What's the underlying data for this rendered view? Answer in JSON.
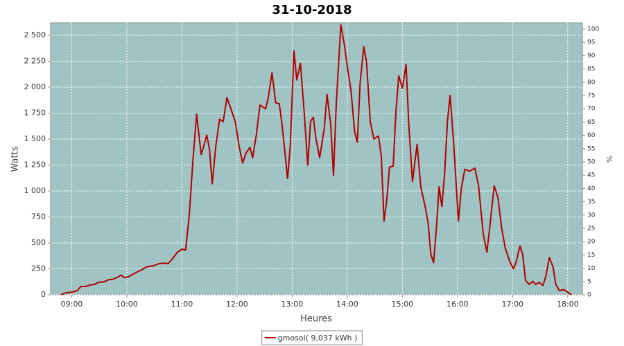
{
  "chart_data": {
    "type": "line",
    "title": "31-10-2018",
    "xlabel": "Heures",
    "ylabel": "Watts",
    "y2label": "%",
    "x": [
      "08:48",
      "08:54",
      "09:00",
      "09:06",
      "09:10",
      "09:15",
      "09:20",
      "09:25",
      "09:29",
      "09:35",
      "09:40",
      "09:45",
      "09:50",
      "09:54",
      "09:57",
      "10:02",
      "10:09",
      "10:16",
      "10:22",
      "10:29",
      "10:35",
      "10:40",
      "10:45",
      "10:50",
      "10:55",
      "11:00",
      "11:04",
      "11:08",
      "11:12",
      "11:16",
      "11:19",
      "11:21",
      "11:24",
      "11:27",
      "11:30",
      "11:33",
      "11:37",
      "11:41",
      "11:45",
      "11:49",
      "11:53",
      "11:58",
      "12:02",
      "12:06",
      "12:10",
      "12:14",
      "12:17",
      "12:21",
      "12:25",
      "12:31",
      "12:34",
      "12:38",
      "12:42",
      "12:46",
      "12:49",
      "12:55",
      "12:58",
      "13:02",
      "13:05",
      "13:09",
      "13:13",
      "13:17",
      "13:20",
      "13:23",
      "13:26",
      "13:30",
      "13:35",
      "13:38",
      "13:42",
      "13:45",
      "13:48",
      "13:53",
      "13:57",
      "14:00",
      "14:04",
      "14:08",
      "14:11",
      "14:14",
      "14:18",
      "14:21",
      "14:25",
      "14:29",
      "14:34",
      "14:37",
      "14:40",
      "14:43",
      "14:46",
      "14:50",
      "14:53",
      "14:56",
      "15:00",
      "15:04",
      "15:07",
      "15:11",
      "15:16",
      "15:20",
      "15:25",
      "15:28",
      "15:31",
      "15:34",
      "15:37",
      "15:40",
      "15:43",
      "15:46",
      "15:49",
      "15:52",
      "15:56",
      "16:01",
      "16:04",
      "16:08",
      "16:13",
      "16:19",
      "16:23",
      "16:28",
      "16:32",
      "16:35",
      "16:40",
      "16:44",
      "16:48",
      "16:52",
      "16:57",
      "17:01",
      "17:04",
      "17:08",
      "17:11",
      "17:14",
      "17:18",
      "17:22",
      "17:25",
      "17:29",
      "17:33",
      "17:36",
      "17:40",
      "17:44",
      "17:47",
      "17:51",
      "17:56",
      "18:00",
      "18:04"
    ],
    "series": [
      {
        "name": "gmosol( 9,037 kWh )",
        "color": "#b00000",
        "values": [
          0,
          20,
          25,
          40,
          80,
          80,
          95,
          100,
          120,
          125,
          145,
          150,
          170,
          190,
          165,
          175,
          210,
          240,
          270,
          280,
          300,
          305,
          300,
          350,
          410,
          440,
          430,
          770,
          1300,
          1740,
          1500,
          1350,
          1440,
          1540,
          1400,
          1070,
          1440,
          1690,
          1670,
          1900,
          1800,
          1670,
          1440,
          1270,
          1370,
          1420,
          1320,
          1540,
          1830,
          1790,
          1900,
          2140,
          1850,
          1840,
          1640,
          1120,
          1440,
          2350,
          2070,
          2230,
          1770,
          1250,
          1670,
          1710,
          1500,
          1320,
          1610,
          1930,
          1640,
          1150,
          1840,
          2600,
          2400,
          2200,
          1970,
          1570,
          1470,
          2040,
          2390,
          2240,
          1670,
          1500,
          1530,
          1340,
          710,
          910,
          1230,
          1240,
          1770,
          2110,
          1990,
          2220,
          1640,
          1090,
          1450,
          1040,
          840,
          690,
          390,
          310,
          640,
          1040,
          850,
          1170,
          1670,
          1920,
          1440,
          710,
          1010,
          1210,
          1190,
          1220,
          1050,
          590,
          410,
          640,
          1050,
          940,
          650,
          450,
          320,
          250,
          320,
          470,
          390,
          140,
          100,
          130,
          100,
          120,
          90,
          170,
          360,
          270,
          100,
          40,
          50,
          25,
          0
        ]
      }
    ],
    "xlim": [
      "08:37",
      "18:16"
    ],
    "xticks": [
      "09:00",
      "10:00",
      "11:00",
      "12:00",
      "13:00",
      "14:00",
      "15:00",
      "16:00",
      "17:00",
      "18:00"
    ],
    "ylim": [
      0,
      2620
    ],
    "yticks": [
      0,
      {
        "value": 250,
        "label": "250"
      },
      500,
      750,
      {
        "value": 1000,
        "label": "1 000"
      },
      {
        "value": 1250,
        "label": "1 250"
      },
      {
        "value": 1500,
        "label": "1 500"
      },
      {
        "value": 1750,
        "label": "1 750"
      },
      {
        "value": 2000,
        "label": "2 000"
      },
      {
        "value": 2250,
        "label": "2 250"
      },
      {
        "value": 2500,
        "label": "2 500"
      }
    ],
    "y2lim": [
      0,
      102.34
    ],
    "y2ticks": [
      0,
      5,
      10,
      15,
      20,
      25,
      30,
      35,
      40,
      45,
      50,
      55,
      60,
      65,
      70,
      75,
      80,
      85,
      90,
      95,
      100
    ],
    "grid": true,
    "legend": "bottom",
    "background": "#a0c4c4"
  }
}
